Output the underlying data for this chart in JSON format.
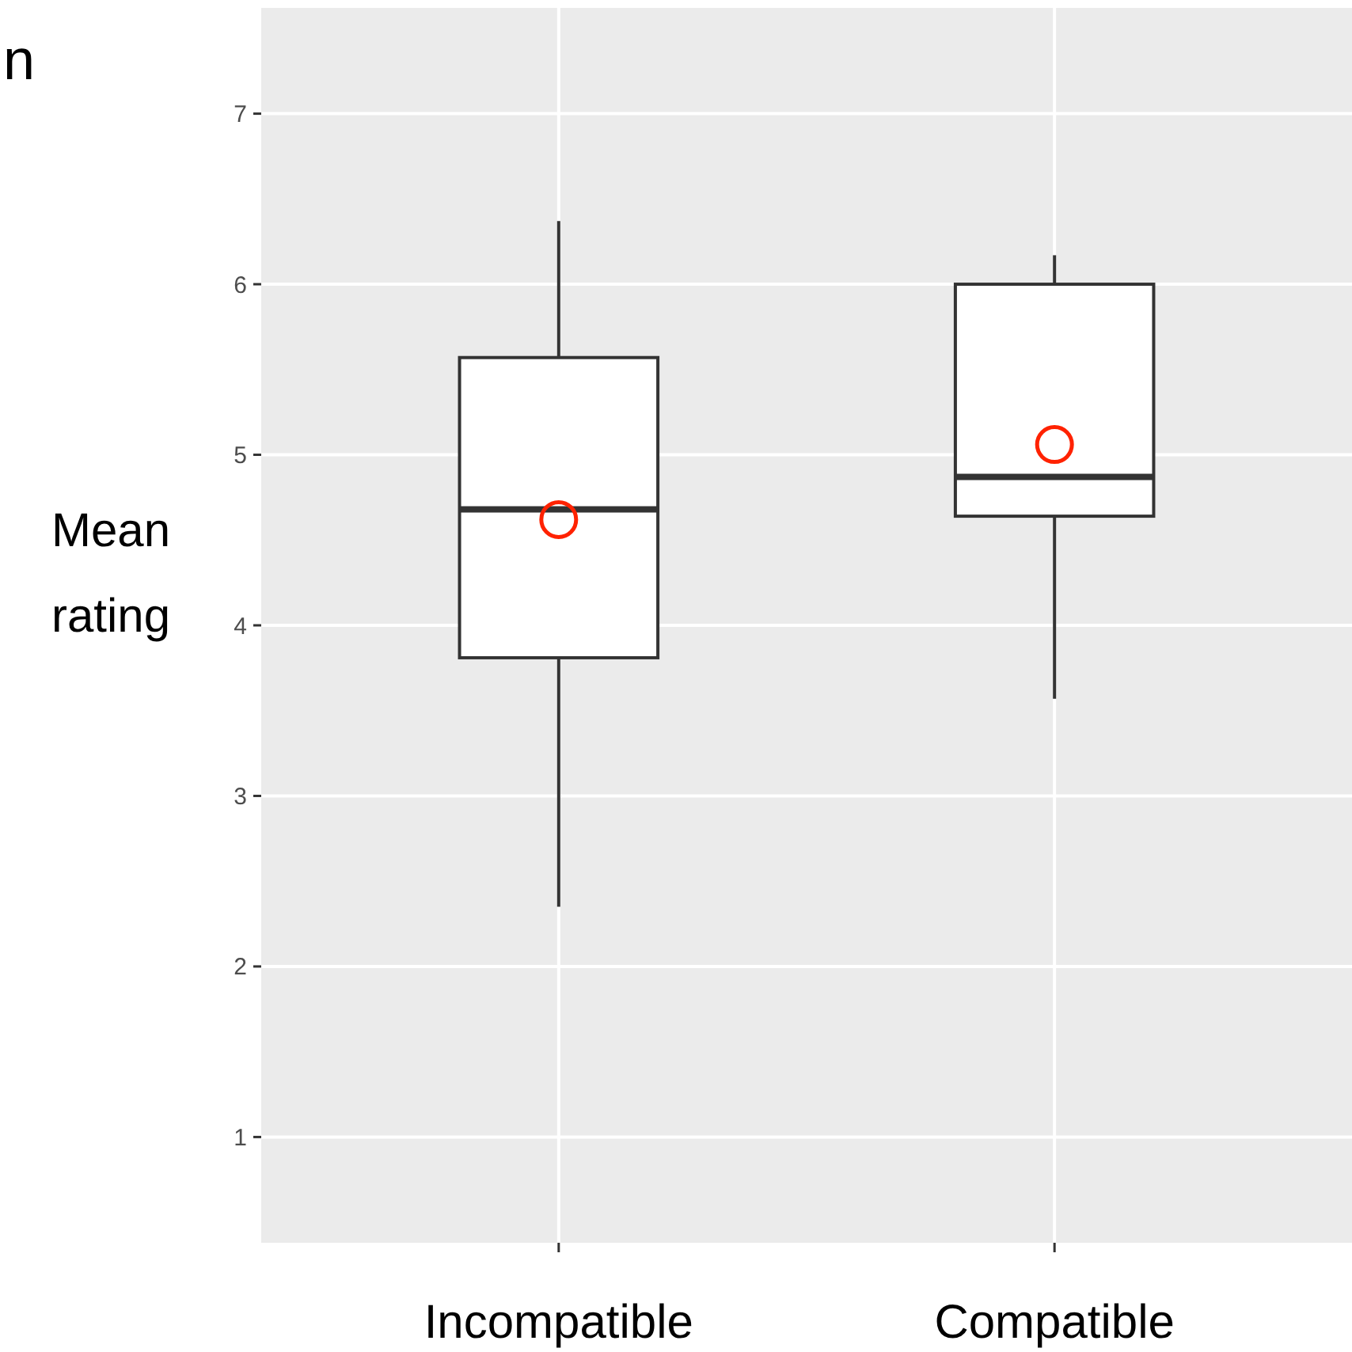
{
  "chart_data": {
    "type": "box",
    "ylabel": "Mean\nrating",
    "annotations": [
      "n"
    ],
    "categories": [
      "Incompatible",
      "Compatible"
    ],
    "boxes": [
      {
        "low": 2.35,
        "q1": 3.81,
        "median": 4.68,
        "q3": 5.57,
        "high": 6.37,
        "mean": 4.62
      },
      {
        "low": 3.57,
        "q1": 4.64,
        "median": 4.87,
        "q3": 6.0,
        "high": 6.17,
        "mean": 5.06
      }
    ],
    "ylim": [
      0.38,
      7.62
    ],
    "yticks": [
      1,
      2,
      3,
      4,
      5,
      6,
      7
    ],
    "grid": true,
    "marker": "circle"
  }
}
